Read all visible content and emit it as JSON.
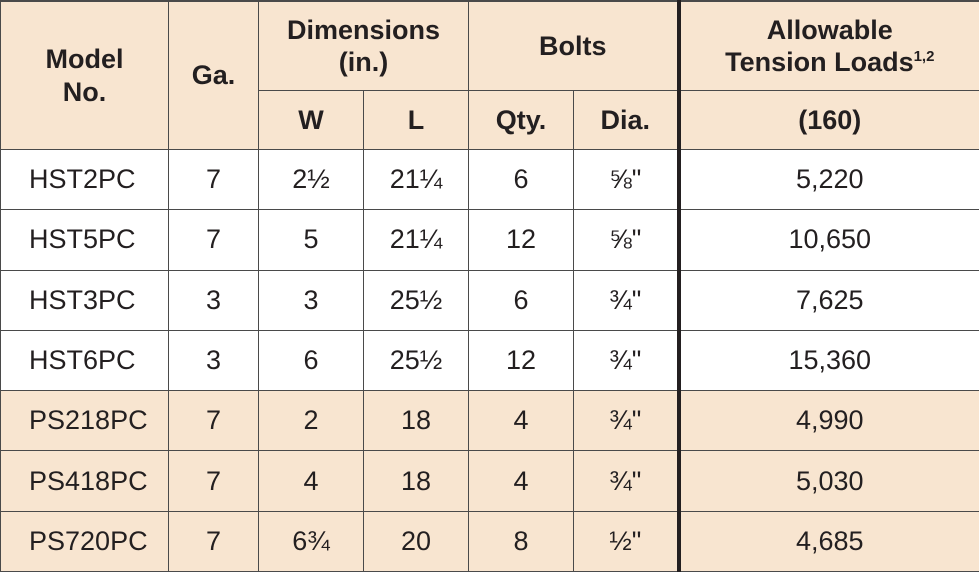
{
  "headers": {
    "model": [
      "Model",
      "No."
    ],
    "gauge": "Ga.",
    "dimensions": [
      "Dimensions",
      "(in.)"
    ],
    "bolts": "Bolts",
    "loads": [
      "Allowable",
      "Tension Loads"
    ],
    "loads_sup": "1,2",
    "w": "W",
    "l": "L",
    "qty": "Qty.",
    "dia": "Dia.",
    "load_sub": "(160)"
  },
  "rows": [
    {
      "model": "HST2PC",
      "ga": "7",
      "w": "2½",
      "l": "21¼",
      "qty": "6",
      "dia": "⅝\"",
      "load": "5,220"
    },
    {
      "model": "HST5PC",
      "ga": "7",
      "w": "5",
      "l": "21¼",
      "qty": "12",
      "dia": "⅝\"",
      "load": "10,650"
    },
    {
      "model": "HST3PC",
      "ga": "3",
      "w": "3",
      "l": "25½",
      "qty": "6",
      "dia": "¾\"",
      "load": "7,625"
    },
    {
      "model": "HST6PC",
      "ga": "3",
      "w": "6",
      "l": "25½",
      "qty": "12",
      "dia": "¾\"",
      "load": "15,360"
    },
    {
      "model": "PS218PC",
      "ga": "7",
      "w": "2",
      "l": "18",
      "qty": "4",
      "dia": "¾\"",
      "load": "4,990"
    },
    {
      "model": "PS418PC",
      "ga": "7",
      "w": "4",
      "l": "18",
      "qty": "4",
      "dia": "¾\"",
      "load": "5,030"
    },
    {
      "model": "PS720PC",
      "ga": "7",
      "w": "6¾",
      "l": "20",
      "qty": "8",
      "dia": "½\"",
      "load": "4,685"
    }
  ],
  "colors": {
    "shaded": "#f8e5d0",
    "border": "#4a4a4a",
    "text": "#231f20"
  }
}
